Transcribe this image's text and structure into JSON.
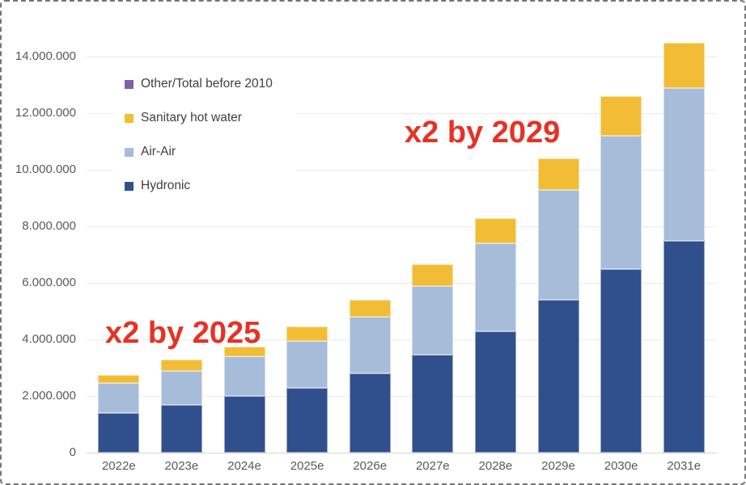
{
  "frame": {
    "background": "#ffffff",
    "border_color": "#757575"
  },
  "chart_data": {
    "type": "bar",
    "stacked": true,
    "title": "",
    "xlabel": "",
    "ylabel": "",
    "categories": [
      "2022e",
      "2023e",
      "2024e",
      "2025e",
      "2026e",
      "2027e",
      "2028e",
      "2029e",
      "2030e",
      "2031e"
    ],
    "series": [
      {
        "name": "Hydronic",
        "color": "#304F8D",
        "values": [
          1400000,
          1700000,
          2000000,
          2300000,
          2800000,
          3450000,
          4300000,
          5400000,
          6500000,
          7500000
        ]
      },
      {
        "name": "Air-Air",
        "color": "#A7BCD9",
        "values": [
          1050000,
          1200000,
          1400000,
          1650000,
          2000000,
          2450000,
          3100000,
          3900000,
          4700000,
          5400000
        ]
      },
      {
        "name": "Sanitary hot water",
        "color": "#F2BD35",
        "values": [
          300000,
          400000,
          350000,
          500000,
          600000,
          750000,
          900000,
          1100000,
          1400000,
          1600000
        ]
      },
      {
        "name": "Other/Total before 2010",
        "color": "#7C61A9",
        "values": [
          0,
          0,
          0,
          0,
          0,
          0,
          0,
          0,
          0,
          0
        ]
      }
    ],
    "totals": [
      2750000,
      3300000,
      3750000,
      4450000,
      5400000,
      6650000,
      8300000,
      10400000,
      12600000,
      14500000
    ],
    "legend_order": [
      "Other/Total before 2010",
      "Sanitary hot water",
      "Air-Air",
      "Hydronic"
    ],
    "legend_position": "top-left-inside",
    "grid": true,
    "y_axis": {
      "min": 0,
      "max": 14000000,
      "step": 2000000,
      "tick_labels": [
        "0",
        "2.000.000",
        "4.000.000",
        "6.000.000",
        "8.000.000",
        "10.000.000",
        "12.000.000",
        "14.000.000"
      ]
    },
    "annotations": [
      {
        "text": "x2 by 2025",
        "color": "#E73125",
        "x": 128,
        "y": 391
      },
      {
        "text": "x2 by 2029",
        "color": "#E73125",
        "x": 498,
        "y": 143
      }
    ],
    "colors": {
      "grid": "#EAEAEA",
      "axis_line": "#D6D6D6",
      "tick_text": "#595959",
      "legend_text": "#404040"
    }
  }
}
